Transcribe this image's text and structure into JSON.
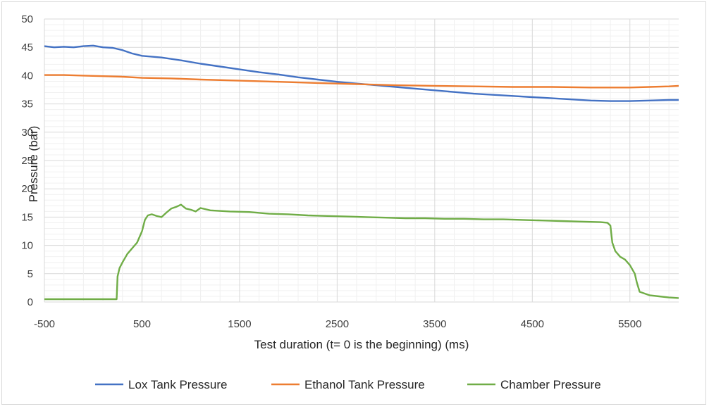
{
  "chart_data": {
    "type": "line",
    "title": "",
    "xlabel": "Test duration (t= 0 is the beginning) (ms)",
    "ylabel": "Pressure (bar)",
    "xlim": [
      -500,
      6000
    ],
    "ylim": [
      0,
      50
    ],
    "x_ticks": [
      -500,
      500,
      1500,
      2500,
      3500,
      4500,
      5500
    ],
    "y_ticks": [
      0,
      5,
      10,
      15,
      20,
      25,
      30,
      35,
      40,
      45,
      50
    ],
    "grid": true,
    "legend_position": "bottom",
    "series": [
      {
        "name": "Lox Tank Pressure",
        "color": "#4472c4",
        "points": [
          [
            -500,
            45.2
          ],
          [
            -400,
            45.0
          ],
          [
            -300,
            45.1
          ],
          [
            -200,
            45.0
          ],
          [
            -100,
            45.2
          ],
          [
            0,
            45.3
          ],
          [
            100,
            45.0
          ],
          [
            200,
            44.9
          ],
          [
            300,
            44.5
          ],
          [
            400,
            43.9
          ],
          [
            500,
            43.5
          ],
          [
            700,
            43.2
          ],
          [
            900,
            42.7
          ],
          [
            1100,
            42.1
          ],
          [
            1300,
            41.6
          ],
          [
            1500,
            41.1
          ],
          [
            1700,
            40.6
          ],
          [
            1900,
            40.2
          ],
          [
            2100,
            39.7
          ],
          [
            2300,
            39.3
          ],
          [
            2500,
            38.9
          ],
          [
            2700,
            38.6
          ],
          [
            2900,
            38.3
          ],
          [
            3100,
            38.0
          ],
          [
            3300,
            37.7
          ],
          [
            3500,
            37.4
          ],
          [
            3700,
            37.1
          ],
          [
            3900,
            36.8
          ],
          [
            4100,
            36.6
          ],
          [
            4300,
            36.4
          ],
          [
            4500,
            36.2
          ],
          [
            4700,
            36.0
          ],
          [
            4900,
            35.8
          ],
          [
            5100,
            35.6
          ],
          [
            5300,
            35.5
          ],
          [
            5500,
            35.5
          ],
          [
            5700,
            35.6
          ],
          [
            5900,
            35.7
          ],
          [
            6000,
            35.7
          ]
        ]
      },
      {
        "name": "Ethanol Tank Pressure",
        "color": "#ed7d31",
        "points": [
          [
            -500,
            40.1
          ],
          [
            -300,
            40.1
          ],
          [
            -100,
            40.0
          ],
          [
            100,
            39.9
          ],
          [
            300,
            39.8
          ],
          [
            500,
            39.6
          ],
          [
            800,
            39.5
          ],
          [
            1100,
            39.3
          ],
          [
            1500,
            39.1
          ],
          [
            1900,
            38.9
          ],
          [
            2300,
            38.7
          ],
          [
            2700,
            38.5
          ],
          [
            3100,
            38.3
          ],
          [
            3500,
            38.2
          ],
          [
            3900,
            38.1
          ],
          [
            4300,
            38.0
          ],
          [
            4700,
            38.0
          ],
          [
            5100,
            37.9
          ],
          [
            5300,
            37.9
          ],
          [
            5500,
            37.9
          ],
          [
            5700,
            38.0
          ],
          [
            5900,
            38.1
          ],
          [
            6000,
            38.2
          ]
        ]
      },
      {
        "name": "Chamber Pressure",
        "color": "#70ad47",
        "points": [
          [
            -500,
            0.5
          ],
          [
            -300,
            0.5
          ],
          [
            -100,
            0.5
          ],
          [
            100,
            0.5
          ],
          [
            200,
            0.5
          ],
          [
            240,
            0.5
          ],
          [
            250,
            4.5
          ],
          [
            270,
            6.0
          ],
          [
            300,
            7.0
          ],
          [
            350,
            8.5
          ],
          [
            400,
            9.5
          ],
          [
            450,
            10.5
          ],
          [
            500,
            12.5
          ],
          [
            530,
            14.5
          ],
          [
            560,
            15.3
          ],
          [
            600,
            15.5
          ],
          [
            650,
            15.2
          ],
          [
            700,
            15.0
          ],
          [
            750,
            15.8
          ],
          [
            800,
            16.5
          ],
          [
            850,
            16.8
          ],
          [
            900,
            17.2
          ],
          [
            950,
            16.5
          ],
          [
            1000,
            16.3
          ],
          [
            1050,
            16.0
          ],
          [
            1100,
            16.6
          ],
          [
            1200,
            16.2
          ],
          [
            1400,
            16.0
          ],
          [
            1600,
            15.9
          ],
          [
            1800,
            15.6
          ],
          [
            2000,
            15.5
          ],
          [
            2200,
            15.3
          ],
          [
            2400,
            15.2
          ],
          [
            2600,
            15.1
          ],
          [
            2800,
            15.0
          ],
          [
            3000,
            14.9
          ],
          [
            3200,
            14.8
          ],
          [
            3400,
            14.8
          ],
          [
            3600,
            14.7
          ],
          [
            3800,
            14.7
          ],
          [
            4000,
            14.6
          ],
          [
            4200,
            14.6
          ],
          [
            4400,
            14.5
          ],
          [
            4600,
            14.4
          ],
          [
            4800,
            14.3
          ],
          [
            5000,
            14.2
          ],
          [
            5200,
            14.1
          ],
          [
            5270,
            14.0
          ],
          [
            5300,
            13.5
          ],
          [
            5320,
            10.5
          ],
          [
            5350,
            9.0
          ],
          [
            5400,
            8.0
          ],
          [
            5450,
            7.5
          ],
          [
            5500,
            6.5
          ],
          [
            5550,
            5.0
          ],
          [
            5570,
            3.5
          ],
          [
            5600,
            1.8
          ],
          [
            5700,
            1.2
          ],
          [
            5800,
            1.0
          ],
          [
            5900,
            0.8
          ],
          [
            6000,
            0.7
          ]
        ]
      }
    ]
  }
}
